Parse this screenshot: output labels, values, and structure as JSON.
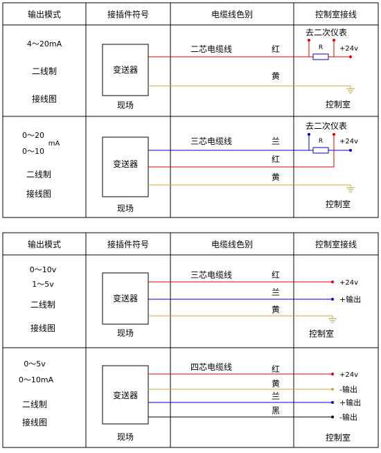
{
  "colors": {
    "red": "#e00000",
    "blue": "#0000cc",
    "yellow": "#c8a848",
    "black": "#000000",
    "ground": "#b89830"
  },
  "headers": {
    "mode": "输出模式",
    "plug": "接插件符号",
    "cable": "电缆线色别",
    "control": "控制室接线"
  },
  "table1": {
    "row1": {
      "mode_lines": [
        "4～20mA",
        "二线制",
        "接线图"
      ],
      "transmitter": "变送器",
      "field": "现场",
      "cable_name": "二芯电缆线",
      "wire_colors": [
        "红",
        "黄"
      ],
      "instrument": "去二次仪表",
      "resistor": "R",
      "supply": "+24v",
      "control_room": "控制室"
    },
    "row2": {
      "mode_lines": [
        "0～20",
        "mA",
        "0～10",
        "二线制",
        "接线图"
      ],
      "transmitter": "变送器",
      "field": "现场",
      "cable_name": "三芯电缆线",
      "wire_colors": [
        "兰",
        "红",
        "黄"
      ],
      "instrument": "去二次仪表",
      "resistor": "R",
      "supply": "+24v",
      "control_room": "控制室"
    }
  },
  "table2": {
    "row1": {
      "mode_lines": [
        "0～10v",
        "1～5v",
        "二线制",
        "接线图"
      ],
      "transmitter": "变送器",
      "field": "现场",
      "cable_name": "三芯电缆线",
      "wire_colors": [
        "红",
        "兰",
        "黄"
      ],
      "terminals": [
        "+24v",
        "+输出"
      ],
      "control_room": "控制室"
    },
    "row2": {
      "mode_lines": [
        "0～5v",
        "0～10mA",
        "二线制",
        "接线图"
      ],
      "transmitter": "变送器",
      "field": "现场",
      "cable_name": "四芯电缆线",
      "wire_colors": [
        "红",
        "黄",
        "兰",
        "黑"
      ],
      "terminals": [
        "+24v",
        "-输出",
        "+输出",
        "-输出"
      ],
      "control_room": "控制室"
    }
  }
}
